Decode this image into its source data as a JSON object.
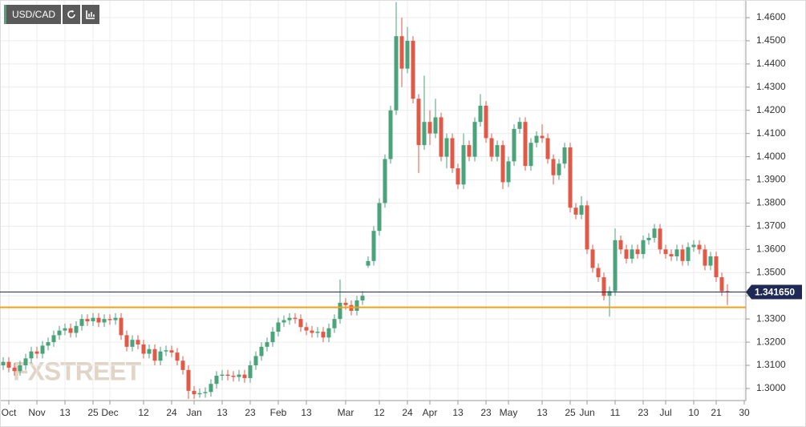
{
  "chart_data": {
    "type": "candlestick",
    "title": "USD/CAD",
    "watermark": "FXSTREET",
    "up_color": "#4aa37a",
    "down_color": "#e05a47",
    "grid": true,
    "ylim": [
      1.2948,
      1.4676
    ],
    "yticks": [
      {
        "value": 1.3,
        "label": "1.3000"
      },
      {
        "value": 1.31,
        "label": "1.3100"
      },
      {
        "value": 1.32,
        "label": "1.3200"
      },
      {
        "value": 1.33,
        "label": "1.3300"
      },
      {
        "value": 1.34,
        "label": "1.3400"
      },
      {
        "value": 1.35,
        "label": "1.3500"
      },
      {
        "value": 1.36,
        "label": "1.3600"
      },
      {
        "value": 1.37,
        "label": "1.3700"
      },
      {
        "value": 1.38,
        "label": "1.3800"
      },
      {
        "value": 1.39,
        "label": "1.3900"
      },
      {
        "value": 1.4,
        "label": "1.4000"
      },
      {
        "value": 1.41,
        "label": "1.4100"
      },
      {
        "value": 1.42,
        "label": "1.4200"
      },
      {
        "value": 1.43,
        "label": "1.4300"
      },
      {
        "value": 1.44,
        "label": "1.4400"
      },
      {
        "value": 1.45,
        "label": "1.4500"
      },
      {
        "value": 1.46,
        "label": "1.4600"
      }
    ],
    "price_line": {
      "value": 1.34165,
      "label": "1.341650",
      "color": "#1e2a55"
    },
    "support_line": {
      "value": 1.335,
      "color": "#f5a01a"
    },
    "categories": [
      null,
      "Oct",
      null,
      null,
      null,
      null,
      "Nov",
      null,
      null,
      null,
      null,
      "13",
      null,
      null,
      null,
      null,
      "25",
      null,
      null,
      "Dec",
      null,
      null,
      null,
      null,
      null,
      "12",
      null,
      null,
      null,
      null,
      "24",
      null,
      null,
      null,
      "Jan",
      null,
      null,
      null,
      null,
      "13",
      null,
      null,
      null,
      null,
      "23",
      null,
      null,
      null,
      null,
      "Feb",
      null,
      null,
      null,
      null,
      "13",
      null,
      null,
      null,
      null,
      null,
      null,
      "Mar",
      null,
      null,
      null,
      null,
      null,
      "12",
      null,
      null,
      null,
      null,
      "24",
      null,
      null,
      null,
      "Apr",
      null,
      null,
      null,
      null,
      "13",
      null,
      null,
      null,
      null,
      "23",
      null,
      null,
      null,
      "May",
      null,
      null,
      null,
      null,
      null,
      "13",
      null,
      null,
      null,
      null,
      "25",
      null,
      null,
      "Jun",
      null,
      null,
      null,
      null,
      "11",
      null,
      null,
      null,
      null,
      "23",
      null,
      null,
      null,
      "Jul",
      null,
      null,
      null,
      null,
      "10",
      null,
      null,
      null,
      "21",
      null,
      null,
      null,
      null,
      "30"
    ],
    "open": [
      1.31,
      1.3115,
      1.309,
      1.3075,
      1.31,
      1.313,
      1.316,
      1.315,
      1.3185,
      1.32,
      1.323,
      1.325,
      1.326,
      1.324,
      1.327,
      1.33,
      1.329,
      1.3305,
      1.3285,
      1.33,
      1.3295,
      1.3305,
      1.323,
      1.318,
      1.321,
      1.319,
      1.315,
      1.317,
      1.312,
      1.316,
      1.3165,
      1.3155,
      1.312,
      1.308,
      1.299,
      1.2975,
      1.298,
      1.2985,
      1.302,
      1.3055,
      1.306,
      1.3055,
      1.305,
      1.306,
      1.3045,
      1.31,
      1.314,
      1.318,
      1.32,
      1.3245,
      1.3285,
      1.3295,
      1.3305,
      1.33,
      1.3265,
      1.325,
      1.324,
      1.3245,
      1.322,
      1.326,
      1.33,
      1.337,
      1.336,
      1.3335,
      1.338,
      1.353,
      1.355,
      1.368,
      1.38,
      1.399,
      1.42,
      1.452,
      1.438,
      1.45,
      1.425,
      1.405,
      1.415,
      1.41,
      1.417,
      1.4,
      1.408,
      1.395,
      1.388,
      1.405,
      1.4,
      1.415,
      1.422,
      1.408,
      1.4,
      1.405,
      1.389,
      1.398,
      1.412,
      1.415,
      1.396,
      1.406,
      1.409,
      1.408,
      1.399,
      1.392,
      1.397,
      1.404,
      1.378,
      1.375,
      1.379,
      1.36,
      1.352,
      1.348,
      1.34,
      1.342,
      1.364,
      1.36,
      1.356,
      1.36,
      1.358,
      1.364,
      1.365,
      1.369,
      1.36,
      1.358,
      1.357,
      1.36,
      1.355,
      1.361,
      1.362,
      1.36,
      1.353,
      1.357,
      1.348,
      1.342,
      null,
      null,
      null
    ],
    "high": [
      1.3135,
      1.3135,
      1.311,
      1.312,
      1.315,
      1.318,
      1.318,
      1.3205,
      1.322,
      1.325,
      1.327,
      1.328,
      1.328,
      1.329,
      1.332,
      1.332,
      1.3325,
      1.3325,
      1.332,
      1.332,
      1.3325,
      1.3325,
      1.325,
      1.323,
      1.323,
      1.321,
      1.319,
      1.319,
      1.318,
      1.3185,
      1.3185,
      1.3175,
      1.314,
      1.31,
      1.301,
      1.3,
      1.3005,
      1.304,
      1.3075,
      1.308,
      1.308,
      1.3075,
      1.308,
      1.308,
      1.312,
      1.316,
      1.32,
      1.322,
      1.3265,
      1.3305,
      1.3315,
      1.3325,
      1.3325,
      1.332,
      1.3285,
      1.327,
      1.3265,
      1.3265,
      1.328,
      1.332,
      1.347,
      1.339,
      1.338,
      1.34,
      1.342,
      1.357,
      1.37,
      1.382,
      1.401,
      1.422,
      1.4667,
      1.46,
      1.456,
      1.452,
      1.427,
      1.435,
      1.42,
      1.425,
      1.419,
      1.41,
      1.41,
      1.397,
      1.41,
      1.407,
      1.417,
      1.427,
      1.424,
      1.41,
      1.407,
      1.407,
      1.4,
      1.414,
      1.417,
      1.417,
      1.408,
      1.411,
      1.414,
      1.41,
      1.401,
      1.399,
      1.406,
      1.406,
      1.38,
      1.383,
      1.381,
      1.362,
      1.354,
      1.35,
      1.344,
      1.369,
      1.366,
      1.362,
      1.362,
      1.362,
      1.366,
      1.367,
      1.371,
      1.371,
      1.362,
      1.36,
      1.362,
      1.362,
      1.363,
      1.364,
      1.364,
      1.362,
      1.359,
      1.359,
      1.35,
      1.345,
      null,
      null,
      null
    ],
    "low": [
      1.308,
      1.307,
      1.3055,
      1.3055,
      1.308,
      1.311,
      1.313,
      1.313,
      1.3165,
      1.318,
      1.321,
      1.323,
      1.322,
      1.322,
      1.325,
      1.327,
      1.327,
      1.3265,
      1.3265,
      1.3275,
      1.3275,
      1.321,
      1.316,
      1.316,
      1.317,
      1.313,
      1.313,
      1.31,
      1.31,
      1.314,
      1.3135,
      1.31,
      1.306,
      1.2955,
      1.2955,
      1.296,
      1.296,
      1.2965,
      1.3,
      1.3035,
      1.3035,
      1.303,
      1.303,
      1.3025,
      1.3025,
      1.308,
      1.312,
      1.316,
      1.318,
      1.3225,
      1.3265,
      1.3275,
      1.328,
      1.3245,
      1.323,
      1.322,
      1.322,
      1.32,
      1.32,
      1.324,
      1.328,
      1.334,
      1.3315,
      1.3315,
      1.336,
      1.352,
      1.353,
      1.366,
      1.378,
      1.397,
      1.418,
      1.43,
      1.436,
      1.423,
      1.393,
      1.403,
      1.405,
      1.408,
      1.398,
      1.395,
      1.393,
      1.386,
      1.386,
      1.398,
      1.398,
      1.413,
      1.406,
      1.398,
      1.398,
      1.386,
      1.387,
      1.396,
      1.41,
      1.394,
      1.394,
      1.404,
      1.406,
      1.397,
      1.388,
      1.39,
      1.395,
      1.376,
      1.373,
      1.373,
      1.358,
      1.35,
      1.346,
      1.338,
      1.331,
      1.34,
      1.358,
      1.354,
      1.354,
      1.356,
      1.356,
      1.362,
      1.363,
      1.358,
      1.356,
      1.355,
      1.355,
      1.353,
      1.353,
      1.359,
      1.358,
      1.351,
      1.351,
      1.346,
      1.34,
      1.336,
      null,
      null,
      null
    ],
    "close": [
      1.3115,
      1.309,
      1.3075,
      1.31,
      1.313,
      1.316,
      1.315,
      1.3185,
      1.32,
      1.323,
      1.325,
      1.326,
      1.324,
      1.327,
      1.33,
      1.329,
      1.3305,
      1.3285,
      1.33,
      1.3295,
      1.3305,
      1.323,
      1.318,
      1.321,
      1.319,
      1.315,
      1.317,
      1.312,
      1.316,
      1.3165,
      1.3155,
      1.312,
      1.308,
      1.299,
      1.2975,
      1.298,
      1.2985,
      1.302,
      1.3055,
      1.306,
      1.3055,
      1.305,
      1.306,
      1.3045,
      1.31,
      1.314,
      1.318,
      1.32,
      1.3245,
      1.3285,
      1.3295,
      1.3305,
      1.33,
      1.3265,
      1.325,
      1.324,
      1.3245,
      1.322,
      1.326,
      1.33,
      1.337,
      1.336,
      1.3335,
      1.338,
      1.34,
      1.355,
      1.368,
      1.38,
      1.399,
      1.42,
      1.452,
      1.438,
      1.45,
      1.425,
      1.405,
      1.415,
      1.41,
      1.417,
      1.4,
      1.408,
      1.395,
      1.388,
      1.405,
      1.4,
      1.415,
      1.422,
      1.408,
      1.4,
      1.405,
      1.389,
      1.398,
      1.412,
      1.415,
      1.396,
      1.406,
      1.409,
      1.408,
      1.399,
      1.392,
      1.397,
      1.404,
      1.378,
      1.375,
      1.379,
      1.36,
      1.352,
      1.348,
      1.34,
      1.342,
      1.364,
      1.36,
      1.356,
      1.36,
      1.358,
      1.364,
      1.365,
      1.369,
      1.36,
      1.358,
      1.357,
      1.36,
      1.355,
      1.361,
      1.362,
      1.36,
      1.353,
      1.357,
      1.348,
      1.342,
      1.34165,
      null,
      null,
      null
    ]
  }
}
